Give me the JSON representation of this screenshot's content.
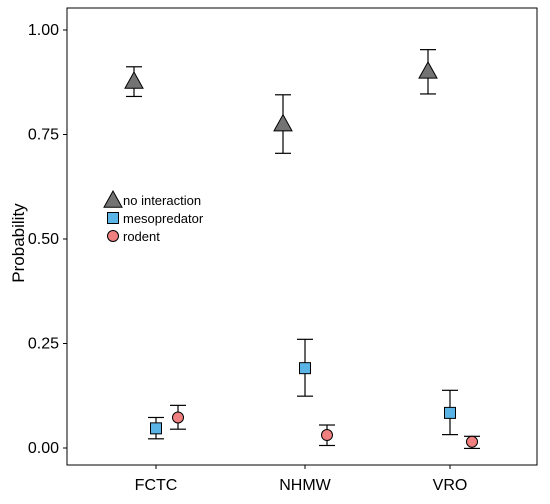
{
  "chart_data": {
    "type": "scatter",
    "title": "",
    "xlabel": "",
    "ylabel": "Probability",
    "categories": [
      "FCTC",
      "NHMW",
      "VRO"
    ],
    "ylim": [
      -0.04,
      1.04
    ],
    "yticks": [
      0.0,
      0.25,
      0.5,
      0.75,
      1.0
    ],
    "ytick_labels": [
      "0.00",
      "0.25",
      "0.50",
      "0.75",
      "1.00"
    ],
    "grid": false,
    "legend_position": "left",
    "series": [
      {
        "name": "no interaction",
        "marker": "triangle",
        "color": "#737373",
        "values": [
          0.878,
          0.776,
          0.902
        ],
        "lower": [
          0.841,
          0.705,
          0.847
        ],
        "upper": [
          0.912,
          0.845,
          0.953
        ]
      },
      {
        "name": "mesopredator",
        "marker": "square",
        "color": "#5ab4e5",
        "values": [
          0.047,
          0.191,
          0.084
        ],
        "lower": [
          0.022,
          0.124,
          0.032
        ],
        "upper": [
          0.073,
          0.26,
          0.138
        ]
      },
      {
        "name": "rodent",
        "marker": "circle",
        "color": "#f08080",
        "values": [
          0.073,
          0.031,
          0.015
        ],
        "lower": [
          0.045,
          0.006,
          -0.001
        ],
        "upper": [
          0.102,
          0.055,
          0.028
        ]
      }
    ]
  }
}
